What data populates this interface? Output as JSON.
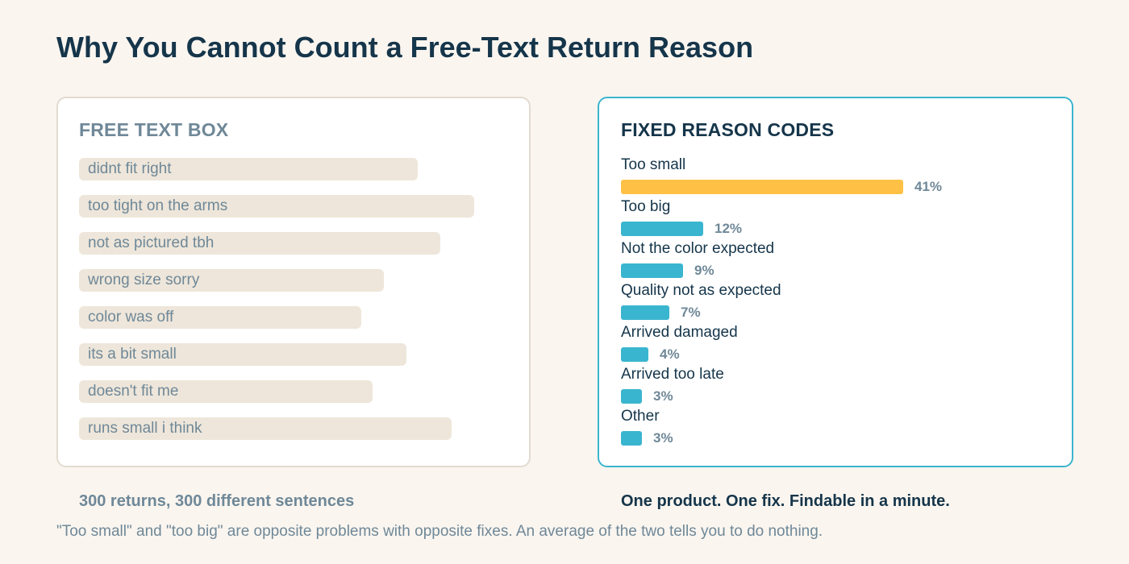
{
  "title": "Why You Cannot Count a Free-Text Return Reason",
  "free_text": {
    "heading": "FREE TEXT BOX",
    "entries": [
      "didnt fit right",
      "too tight on the arms",
      "not as pictured tbh",
      "wrong size sorry",
      "color was off",
      "its a bit small",
      "doesn't fit me",
      "runs small i think"
    ],
    "caption": "300 returns, 300 different sentences"
  },
  "fixed_codes": {
    "heading": "FIXED REASON CODES",
    "caption": "One product. One fix. Findable in a minute."
  },
  "footnote": "\"Too small\" and \"too big\" are opposite problems with opposite fixes. An average of the two tells you to do nothing.",
  "colors": {
    "highlight_bar": "#ffc145",
    "bar": "#3ab5cf",
    "heading_dark": "#15354a",
    "muted": "#6f8898",
    "snippet_bg": "#eee6da"
  },
  "chart_data": {
    "type": "bar",
    "orientation": "horizontal",
    "title": "FIXED REASON CODES",
    "categories": [
      "Too small",
      "Too big",
      "Not the color expected",
      "Quality not as expected",
      "Arrived damaged",
      "Arrived too late",
      "Other"
    ],
    "values": [
      41,
      12,
      9,
      7,
      4,
      3,
      3
    ],
    "value_labels": [
      "41%",
      "12%",
      "9%",
      "7%",
      "4%",
      "3%",
      "3%"
    ],
    "unit": "%",
    "highlight_index": 0,
    "xlim": [
      0,
      41
    ]
  }
}
